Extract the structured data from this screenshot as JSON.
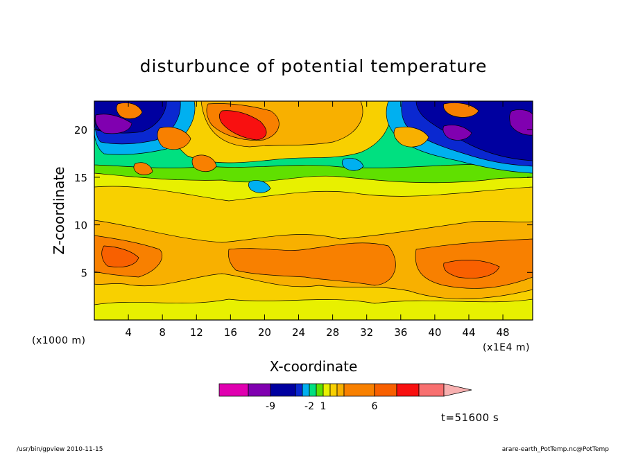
{
  "chart_data": {
    "type": "heatmap",
    "title": "disturbunce of potential temperature",
    "xlabel": "X-coordinate",
    "ylabel": "Z-coordinate",
    "x_unit_left": "(x1000 m)",
    "x_unit_right": "(x1E4 m)",
    "xlim": [
      0,
      51.5
    ],
    "ylim": [
      0,
      23
    ],
    "x_ticks": [
      4,
      8,
      12,
      16,
      20,
      24,
      28,
      32,
      36,
      40,
      44,
      48
    ],
    "x_tick_labels": [
      "4",
      "8",
      "12",
      "16",
      "20",
      "24",
      "28",
      "32",
      "36",
      "40",
      "44",
      "48"
    ],
    "y_ticks": [
      5,
      10,
      15,
      20
    ],
    "y_tick_labels": [
      "5",
      "10",
      "15",
      "20"
    ],
    "time_label": "t=51600 s",
    "footer_left": "/usr/bin/gpview  2010-11-15",
    "footer_right": "arare-earth_PotTemp.nc@PotTemp",
    "colorbar": {
      "colors": [
        "#e000b0",
        "#8000b0",
        "#0000a0",
        "#0a28d0",
        "#00b0f0",
        "#00e080",
        "#60e000",
        "#e8f000",
        "#f8d000",
        "#f8b000",
        "#f88000",
        "#f86000",
        "#f81010",
        "#f87070",
        "#f8b0b0"
      ],
      "tick_labels": [
        "-9",
        "-2",
        "1",
        "6"
      ]
    },
    "field": {
      "levels_note": "",
      "bands_z": [
        {
          "z": [
            0,
            1.5
          ],
          "value": 1.5
        },
        {
          "z": [
            1.5,
            4
          ],
          "value": 4
        },
        {
          "z": [
            4,
            9
          ],
          "value": 6
        },
        {
          "z": [
            9,
            12
          ],
          "value": 4
        },
        {
          "z": [
            12,
            15
          ],
          "value": 2
        },
        {
          "z": [
            15,
            18
          ],
          "value": -1
        },
        {
          "z": [
            18,
            23
          ],
          "value": -6
        }
      ]
    }
  }
}
